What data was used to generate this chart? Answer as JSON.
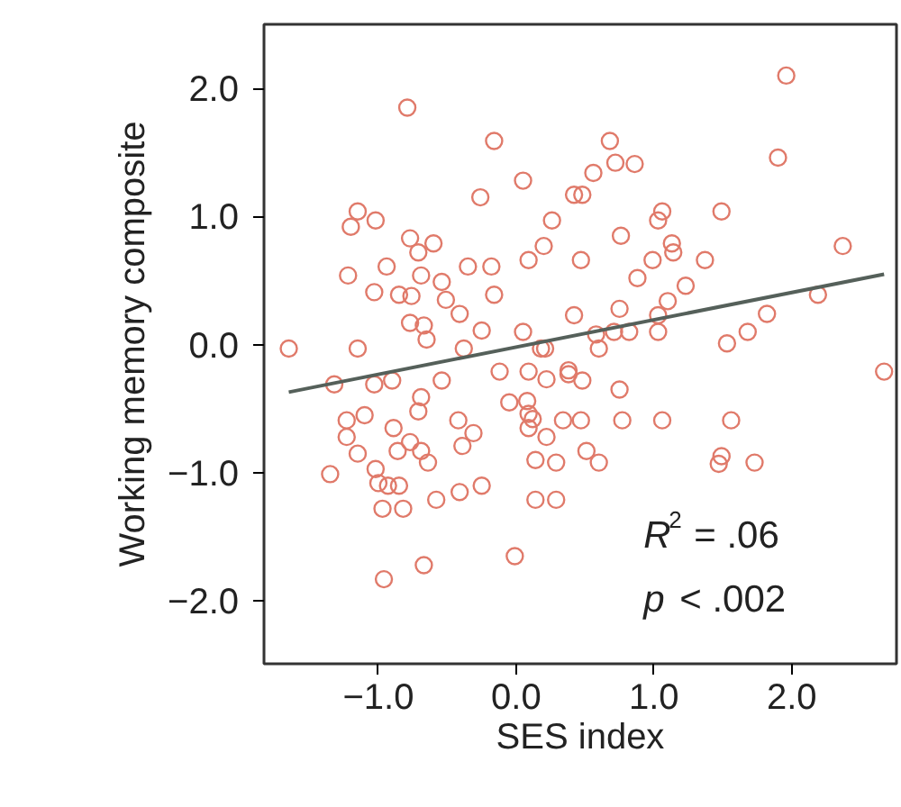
{
  "chart_data": {
    "type": "scatter",
    "xlabel": "SES index",
    "ylabel": "Working memory composite",
    "xlim": [
      -1.83,
      2.76
    ],
    "ylim": [
      -2.49,
      2.5
    ],
    "xticks": [
      {
        "value": -1,
        "label": "−1.0"
      },
      {
        "value": 0,
        "label": "0.0"
      },
      {
        "value": 1,
        "label": "1.0"
      },
      {
        "value": 2,
        "label": "2.0"
      }
    ],
    "yticks": [
      {
        "value": -2,
        "label": "−2.0"
      },
      {
        "value": -1,
        "label": "−1.0"
      },
      {
        "value": 0,
        "label": "0.0"
      },
      {
        "value": 1,
        "label": "1.0"
      },
      {
        "value": 2,
        "label": "2.0"
      }
    ],
    "grid": false,
    "annotations": [
      "R$^{2}$ = .06",
      "p < .002"
    ],
    "series": [
      {
        "color": "#e07a6a",
        "marker": "circle",
        "x": [
          -0.79,
          -0.16,
          0.05,
          -0.26,
          -1.15,
          -1.2,
          -1.02,
          -0.77,
          -0.6,
          -0.71,
          0.09,
          -1.22,
          -0.94,
          -0.69,
          -0.35,
          -0.18,
          -0.54,
          -1.03,
          -0.85,
          -0.76,
          -0.51,
          -0.16,
          -0.41,
          -0.77,
          -0.67,
          -0.65,
          -0.25,
          0.05,
          -0.38,
          -1.15,
          -1.65,
          1.96,
          0.68,
          1.9,
          0.72,
          0.86,
          0.56,
          0.42,
          0.48,
          1.06,
          1.03,
          1.49,
          0.26,
          0.76,
          0.2,
          1.13,
          1.14,
          0.47,
          0.99,
          1.37,
          2.37,
          0.88,
          1.23,
          1.1,
          2.19,
          0.75,
          0.42,
          1.03,
          1.82,
          0.58,
          0.71,
          0.82,
          1.03,
          1.68,
          1.53,
          0.21,
          0.6,
          2.67,
          0.38,
          -1.32,
          -1.03,
          -0.9,
          -0.54,
          -0.12,
          0.09,
          -0.69,
          -0.71,
          -0.05,
          0.08,
          -1.1,
          -1.23,
          -0.42,
          0.09,
          -1.23,
          -0.89,
          -0.31,
          0.09,
          -0.77,
          -0.86,
          -0.39,
          -0.69,
          -1.15,
          -0.64,
          0.14,
          -1.35,
          -1.02,
          -1.0,
          -0.93,
          -0.85,
          -0.25,
          -0.41,
          -0.58,
          0.14,
          -0.97,
          -0.82,
          -0.01,
          -0.67,
          -0.96,
          0.18,
          0.22,
          0.38,
          0.48,
          0.75,
          0.12,
          0.34,
          0.47,
          0.77,
          1.06,
          1.56,
          0.22,
          0.51,
          0.6,
          0.29,
          1.49,
          1.47,
          1.73,
          0.29
        ],
        "values": [
          1.85,
          1.59,
          1.28,
          1.15,
          1.04,
          0.92,
          0.97,
          0.83,
          0.79,
          0.72,
          0.66,
          0.54,
          0.61,
          0.54,
          0.61,
          0.61,
          0.49,
          0.41,
          0.39,
          0.38,
          0.35,
          0.39,
          0.24,
          0.17,
          0.15,
          0.04,
          0.11,
          0.1,
          -0.03,
          -0.03,
          -0.03,
          2.1,
          1.59,
          1.46,
          1.42,
          1.41,
          1.34,
          1.17,
          1.17,
          1.04,
          0.97,
          1.04,
          0.97,
          0.85,
          0.77,
          0.79,
          0.72,
          0.66,
          0.66,
          0.66,
          0.77,
          0.52,
          0.46,
          0.34,
          0.39,
          0.28,
          0.23,
          0.23,
          0.24,
          0.08,
          0.1,
          0.1,
          0.1,
          0.1,
          0.01,
          -0.03,
          -0.03,
          -0.21,
          -0.2,
          -0.31,
          -0.31,
          -0.28,
          -0.28,
          -0.21,
          -0.21,
          -0.41,
          -0.52,
          -0.45,
          -0.44,
          -0.55,
          -0.59,
          -0.59,
          -0.54,
          -0.72,
          -0.65,
          -0.69,
          -0.65,
          -0.76,
          -0.83,
          -0.79,
          -0.83,
          -0.85,
          -0.92,
          -0.9,
          -1.01,
          -0.97,
          -1.08,
          -1.1,
          -1.1,
          -1.1,
          -1.15,
          -1.21,
          -1.21,
          -1.28,
          -1.28,
          -1.65,
          -1.72,
          -1.83,
          -0.03,
          -0.27,
          -0.23,
          -0.28,
          -0.35,
          -0.58,
          -0.59,
          -0.59,
          -0.59,
          -0.59,
          -0.59,
          -0.72,
          -0.83,
          -0.92,
          -0.92,
          -0.87,
          -0.93,
          -0.92,
          -1.21
        ]
      },
      {
        "type": "line",
        "color": "#55605a",
        "x": [
          -1.65,
          2.67
        ],
        "values": [
          -0.37,
          0.55
        ],
        "line_style": "solid",
        "marker": "none"
      }
    ]
  }
}
